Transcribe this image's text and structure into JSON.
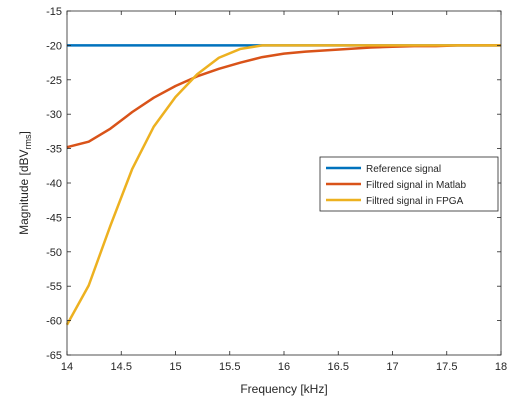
{
  "chart_data": {
    "type": "line",
    "xlabel": "Frequency [kHz]",
    "ylabel": {
      "base": "Magnitude [dBV",
      "subscript": "rms",
      "suffix": "]"
    },
    "xlim": [
      14,
      18
    ],
    "ylim": [
      -65,
      -15
    ],
    "x_ticks": [
      14,
      14.5,
      15,
      15.5,
      16,
      16.5,
      17,
      17.5,
      18
    ],
    "x_tick_labels": [
      "14",
      "14.5",
      "15",
      "15.5",
      "16",
      "16.5",
      "17",
      "17.5",
      "18"
    ],
    "y_ticks": [
      -15,
      -20,
      -25,
      -30,
      -35,
      -40,
      -45,
      -50,
      -55,
      -60,
      -65
    ],
    "y_tick_labels": [
      "-15",
      "-20",
      "-25",
      "-30",
      "-35",
      "-40",
      "-45",
      "-50",
      "-55",
      "-60",
      "-65"
    ],
    "grid": false,
    "legend_position": "right",
    "series": [
      {
        "name": "Reference signal",
        "color": "#0072BD",
        "x": [
          14,
          18
        ],
        "y": [
          -20,
          -20
        ]
      },
      {
        "name": "Filtred signal in Matlab",
        "color": "#D95319",
        "x": [
          14,
          14.2,
          14.4,
          14.6,
          14.8,
          15,
          15.2,
          15.4,
          15.6,
          15.8,
          16,
          16.2,
          16.4,
          16.6,
          16.8,
          17,
          17.2,
          17.4,
          17.6,
          17.8,
          18
        ],
        "y": [
          -34.8,
          -34.0,
          -32.1,
          -29.7,
          -27.6,
          -25.9,
          -24.5,
          -23.4,
          -22.5,
          -21.7,
          -21.2,
          -20.9,
          -20.7,
          -20.5,
          -20.3,
          -20.2,
          -20.1,
          -20.1,
          -20.0,
          -20.0,
          -20.0
        ]
      },
      {
        "name": "Filtred signal in FPGA",
        "color": "#EDB120",
        "x": [
          14,
          14.2,
          14.4,
          14.6,
          14.8,
          15,
          15.2,
          15.4,
          15.6,
          15.8,
          16,
          16.2,
          16.4,
          16.6,
          16.8,
          17,
          17.2,
          17.4,
          17.6,
          17.8,
          18
        ],
        "y": [
          -60.6,
          -54.9,
          -46.2,
          -38.0,
          -31.8,
          -27.5,
          -24.2,
          -21.8,
          -20.5,
          -20.0,
          -20.0,
          -20.0,
          -20.0,
          -20.0,
          -20.0,
          -20.0,
          -20.0,
          -20.0,
          -20.0,
          -20.0,
          -20.0
        ]
      }
    ]
  }
}
